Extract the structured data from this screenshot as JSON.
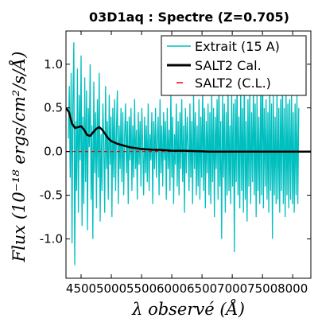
{
  "chart_data": {
    "type": "line",
    "title": "03D1aq : Spectre (Z=0.705)",
    "xlabel": "λ observé (Å)",
    "ylabel": "Flux (10⁻¹⁸ ergs/cm²/s/Å)",
    "xlim": [
      4250,
      8300
    ],
    "ylim": [
      -1.45,
      1.38
    ],
    "xticks": [
      4500,
      5000,
      5500,
      6000,
      6500,
      7000,
      7500,
      8000
    ],
    "yticks": [
      -1.0,
      -0.5,
      0.0,
      0.5,
      1.0
    ],
    "ytick_labels": [
      "-1.0",
      "-0.5",
      "0.0",
      "0.5",
      "1.0"
    ],
    "grid": false,
    "legend_position": "top-right",
    "series": [
      {
        "name": "Extrait (15 A)",
        "color": "#00bfbf",
        "style": "solid",
        "x_start": 4290,
        "x_step": 15,
        "values": [
          0.15,
          0.75,
          -0.3,
          0.9,
          -1.05,
          0.55,
          1.25,
          -1.3,
          0.35,
          -0.45,
          0.95,
          -0.7,
          0.65,
          -0.1,
          1.1,
          -0.85,
          0.4,
          -0.6,
          0.85,
          -0.35,
          0.7,
          -0.9,
          0.5,
          0.05,
          1.0,
          -0.55,
          0.3,
          -1.0,
          0.8,
          -0.25,
          0.45,
          -0.65,
          0.6,
          -0.3,
          0.9,
          -0.8,
          0.2,
          -0.45,
          0.55,
          0.1,
          -0.7,
          0.75,
          -0.2,
          0.35,
          -0.55,
          0.65,
          -0.15,
          0.4,
          -0.75,
          0.5,
          -0.3,
          0.6,
          -0.45,
          0.25,
          0.7,
          -0.6,
          0.3,
          -0.2,
          0.5,
          -0.35,
          0.45,
          -0.5,
          0.2,
          0.55,
          -0.25,
          0.35,
          -0.6,
          0.4,
          -0.1,
          0.5,
          -0.45,
          0.3,
          -0.3,
          0.6,
          -0.2,
          0.25,
          -0.55,
          0.45,
          -0.15,
          0.35,
          -0.4,
          0.5,
          0.05,
          -0.5,
          0.4,
          -0.25,
          0.3,
          -0.35,
          0.55,
          -0.45,
          0.2,
          -0.1,
          0.45,
          -0.6,
          0.35,
          -0.2,
          0.5,
          -0.3,
          0.15,
          0.4,
          -0.5,
          0.6,
          -0.25,
          0.3,
          -0.4,
          0.45,
          -0.1,
          0.35,
          -0.55,
          0.5,
          -0.2,
          0.25,
          -0.45,
          0.7,
          -0.3,
          0.4,
          -0.6,
          0.2,
          -0.15,
          0.55,
          -0.4,
          0.35,
          -0.5,
          0.45,
          -0.2,
          0.6,
          -0.35,
          0.3,
          -0.7,
          0.5,
          -0.25,
          0.4,
          0.1,
          -0.45,
          0.55,
          -0.3,
          0.35,
          -0.6,
          0.65,
          -0.2,
          0.45,
          -0.5,
          0.3,
          -0.4,
          0.6,
          -0.55,
          0.4,
          -0.3,
          0.75,
          -0.45,
          0.5,
          -0.65,
          0.35,
          -0.25,
          0.55,
          -0.5,
          0.45,
          -0.6,
          0.7,
          -0.35,
          0.5,
          -0.75,
          0.4,
          -0.2,
          0.6,
          -0.55,
          0.9,
          -0.4,
          0.35,
          -1.0,
          0.65,
          -0.3,
          0.55,
          -0.7,
          0.45,
          -0.5,
          0.8,
          -0.45,
          0.3,
          -0.6,
          0.7,
          -0.4,
          0.55,
          -1.15,
          0.6,
          -0.35,
          0.85,
          -0.5,
          0.4,
          -0.65,
          0.75,
          -0.45,
          0.5,
          -0.7,
          0.9,
          -0.55,
          0.35,
          -0.8,
          0.6,
          -0.4,
          0.7,
          -0.6,
          0.45,
          -0.35,
          0.8,
          -0.5,
          0.55,
          -0.75,
          0.65,
          -0.45,
          0.4,
          -0.6,
          0.7,
          -0.5,
          1.2,
          -0.65,
          0.5,
          -0.4,
          0.6,
          -0.55,
          0.45,
          -0.7,
          0.8,
          -0.45,
          0.55,
          -1.0,
          0.65,
          -0.5,
          0.4,
          -0.6,
          0.75,
          -0.55,
          0.5,
          -0.7,
          0.6,
          -0.45,
          0.85,
          -0.6,
          0.5,
          -0.75,
          0.7,
          -0.5,
          0.55,
          -0.65,
          0.6,
          -0.55,
          0.7,
          -0.6,
          0.45,
          -0.7,
          0.55,
          -0.5,
          0.65,
          -0.6,
          0.5
        ]
      },
      {
        "name": "SALT2 Cal.",
        "color": "#000000",
        "style": "solid",
        "x": [
          4250,
          4300,
          4350,
          4400,
          4450,
          4500,
          4550,
          4600,
          4650,
          4700,
          4750,
          4800,
          4850,
          4900,
          4950,
          5000,
          5100,
          5200,
          5300,
          5400,
          5500,
          5600,
          5700,
          5800,
          5900,
          6000,
          6200,
          6400,
          6600,
          6800,
          7000,
          7500,
          8000,
          8300
        ],
        "y": [
          0.5,
          0.45,
          0.32,
          0.27,
          0.28,
          0.29,
          0.25,
          0.19,
          0.18,
          0.22,
          0.26,
          0.28,
          0.25,
          0.2,
          0.15,
          0.12,
          0.09,
          0.07,
          0.05,
          0.04,
          0.03,
          0.025,
          0.02,
          0.02,
          0.015,
          0.01,
          0.01,
          0.005,
          0.0,
          0.0,
          0.0,
          0.0,
          0.0,
          0.0
        ]
      },
      {
        "name": "SALT2 (C.L.)",
        "color": "#ff0000",
        "style": "dashed",
        "x": [
          4250,
          8300
        ],
        "y": [
          0.0,
          0.0
        ]
      }
    ]
  }
}
